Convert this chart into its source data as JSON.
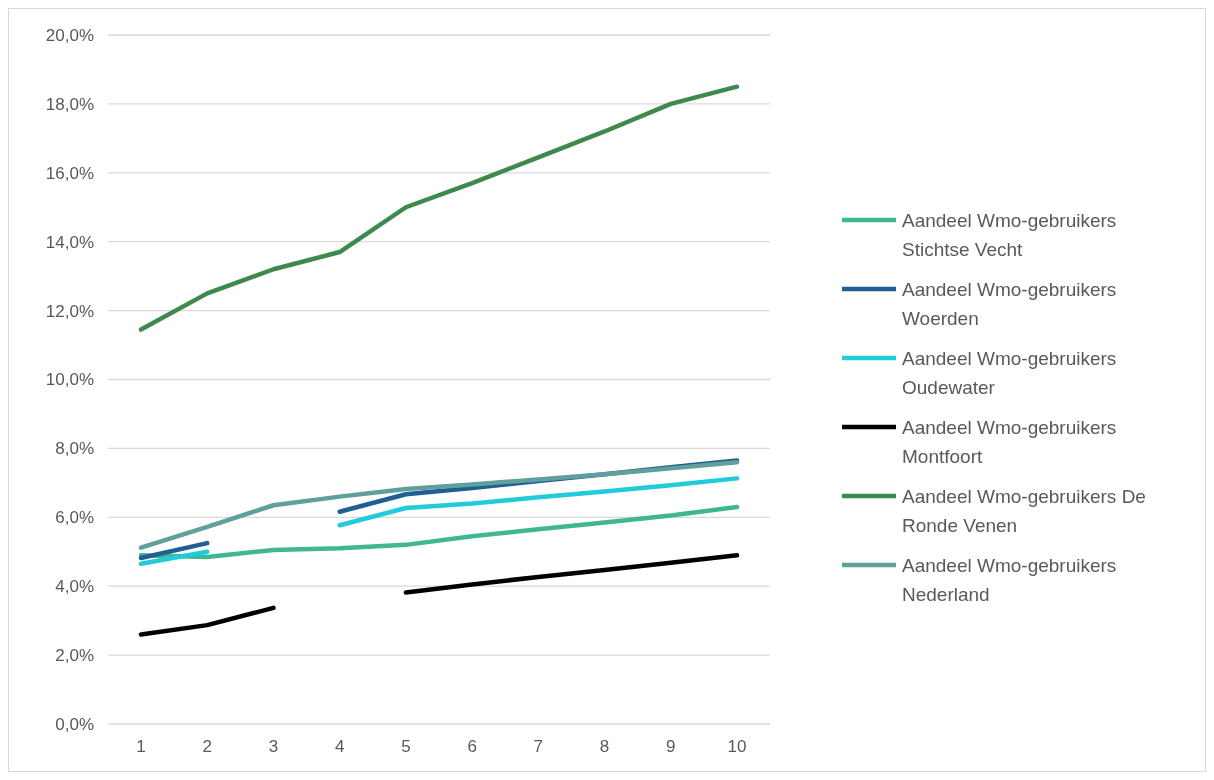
{
  "chart_data": {
    "type": "line",
    "categories": [
      "1",
      "2",
      "3",
      "4",
      "5",
      "6",
      "7",
      "8",
      "9",
      "10"
    ],
    "ylim": [
      0,
      0.2
    ],
    "yticks": [
      {
        "value": 0,
        "label": "0,0%"
      },
      {
        "value": 0.02,
        "label": "2,0%"
      },
      {
        "value": 0.04,
        "label": "4,0%"
      },
      {
        "value": 0.06,
        "label": "6,0%"
      },
      {
        "value": 0.08,
        "label": "8,0%"
      },
      {
        "value": 0.1,
        "label": "10,0%"
      },
      {
        "value": 0.12,
        "label": "12,0%"
      },
      {
        "value": 0.14,
        "label": "14,0%"
      },
      {
        "value": 0.16,
        "label": "16,0%"
      },
      {
        "value": 0.18,
        "label": "18,0%"
      },
      {
        "value": 0.2,
        "label": "20,0%"
      }
    ],
    "grid": "y",
    "legend": "right",
    "marker": "none",
    "line_style": "solid",
    "series": [
      {
        "name": "Aandeel Wmo-gebruikers Stichtse Vecht",
        "color": "#3fb793",
        "values": [
          0.049,
          0.0485,
          0.0505,
          0.051,
          0.052,
          0.0545,
          0.0565,
          0.0585,
          0.0605,
          0.063
        ]
      },
      {
        "name": "Aandeel Wmo-gebruikers Woerden",
        "color": "#1f5f94",
        "values": [
          0.0482,
          0.0525,
          null,
          0.0616,
          0.0667,
          0.0685,
          0.0705,
          0.0725,
          0.0745,
          0.0765
        ]
      },
      {
        "name": "Aandeel Wmo-gebruikers Oudewater",
        "color": "#22cbd9",
        "values": [
          0.0465,
          0.05,
          null,
          0.0577,
          0.0627,
          0.064,
          0.0658,
          0.0675,
          0.0693,
          0.0713
        ]
      },
      {
        "name": "Aandeel Wmo-gebruikers Montfoort",
        "color": "#000000",
        "values": [
          0.026,
          0.0287,
          0.0337,
          null,
          0.0382,
          0.0405,
          0.0427,
          0.0447,
          0.0468,
          0.049
        ]
      },
      {
        "name": "Aandeel Wmo-gebruikers De Ronde Venen",
        "color": "#3e8a4e",
        "values": [
          0.1145,
          0.125,
          0.132,
          0.137,
          0.15,
          0.157,
          0.1645,
          0.172,
          0.18,
          0.185
        ]
      },
      {
        "name": "Aandeel Wmo-gebruikers Nederland",
        "color": "#5fa09c",
        "values": [
          0.0512,
          0.0572,
          0.0635,
          0.066,
          0.0682,
          0.0695,
          0.071,
          0.0725,
          0.0742,
          0.076
        ]
      }
    ]
  }
}
